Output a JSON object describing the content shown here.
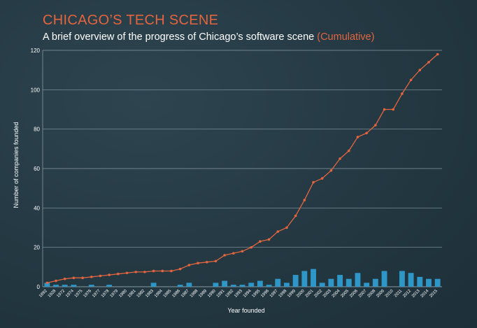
{
  "header": {
    "title": "CHICAGO’S TECH SCENE",
    "subtitle": "A brief overview of the progress of Chicago’s software scene",
    "subtitle_accent": "(Cumulative)"
  },
  "colors": {
    "accent": "#e3653f",
    "bar": "#2f97c7",
    "grid": "#8a9aa3",
    "text": "#ffffff"
  },
  "chart_data": {
    "type": "bar",
    "xlabel": "Year founded",
    "ylabel": "Number of companies founded",
    "ylim": [
      0,
      120
    ],
    "yticks": [
      0,
      20,
      40,
      60,
      80,
      100,
      120
    ],
    "grid": true,
    "categories": [
      "1892",
      "1928",
      "1972",
      "1974",
      "1975",
      "1976",
      "1977",
      "1978",
      "1979",
      "1980",
      "1981",
      "1982",
      "1983",
      "1984",
      "1985",
      "1986",
      "1987",
      "1988",
      "1989",
      "1990",
      "1991",
      "1992",
      "1993",
      "1994",
      "1995",
      "1996",
      "1997",
      "1998",
      "1999",
      "2000",
      "2001",
      "2002",
      "2003",
      "2004",
      "2005",
      "2006",
      "2007",
      "2008",
      "2009",
      "2010",
      "2011",
      "2012",
      "2013",
      "2014",
      "2015"
    ],
    "series": [
      {
        "kind": "bar",
        "values": [
          2,
          1,
          1,
          1,
          0,
          1,
          0,
          1,
          0,
          0,
          0,
          0,
          2,
          0,
          0,
          1,
          2,
          0,
          0,
          2,
          3,
          1,
          1,
          2,
          3,
          1,
          4,
          2,
          6,
          8,
          9,
          2,
          4,
          6,
          4,
          7,
          2,
          4,
          8,
          0,
          8,
          7,
          5,
          4,
          4
        ]
      },
      {
        "kind": "line",
        "values": [
          2,
          3,
          4,
          4.5,
          4.5,
          5,
          5.5,
          6,
          6.5,
          7,
          7.5,
          7.5,
          8,
          8,
          8,
          9,
          11,
          12,
          12.5,
          13,
          16,
          17,
          18,
          20,
          23,
          24,
          28,
          30,
          36,
          44,
          53,
          55,
          59,
          65,
          69,
          76,
          78,
          82,
          90,
          90,
          98,
          105,
          110,
          114,
          118
        ]
      }
    ]
  }
}
